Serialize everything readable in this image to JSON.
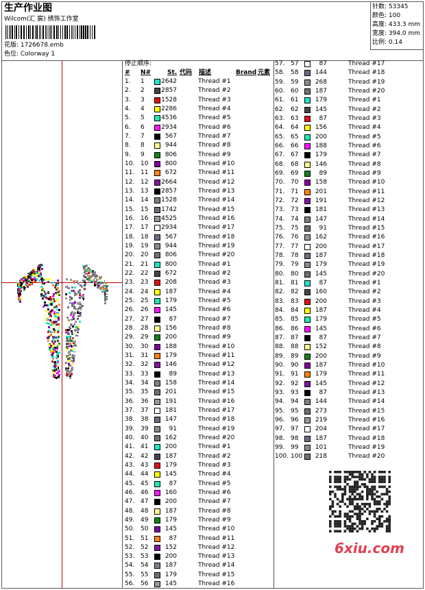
{
  "header": {
    "title": "生产作业图",
    "subtitle": "Wilcom(汇 宸) 绣饰工作室",
    "design": "花版: 1726678.emb",
    "colorway": "色位: Colorway 1"
  },
  "info": [
    "针数: 53345",
    "颜色: 100",
    "高度: 433.3 mm",
    "宽度: 394.0 mm",
    "比例: 0.14"
  ],
  "table": {
    "caption": "停止顺序:",
    "columns": [
      "#",
      "N#",
      "St.",
      "代码",
      "描述",
      "Brand",
      "元素"
    ],
    "rows": [
      [
        "1.",
        "1",
        "#1ee6c4",
        "2642",
        "Thread #1"
      ],
      [
        "2.",
        "2",
        "#45454d",
        "2857",
        "Thread #2"
      ],
      [
        "3.",
        "3",
        "#e01414",
        "1528",
        "Thread #3"
      ],
      [
        "4.",
        "4",
        "#ffff00",
        "2286",
        "Thread #4"
      ],
      [
        "5.",
        "5",
        "#22e8b0",
        "4536",
        "Thread #5"
      ],
      [
        "6.",
        "6",
        "#ff14ff",
        "2934",
        "Thread #6"
      ],
      [
        "7.",
        "7",
        "#000000",
        "567",
        "Thread #7"
      ],
      [
        "8.",
        "8",
        "#ffff90",
        "944",
        "Thread #8"
      ],
      [
        "9.",
        "9",
        "#148214",
        "806",
        "Thread #9"
      ],
      [
        "10.",
        "10",
        "#8200a0",
        "800",
        "Thread #10"
      ],
      [
        "11.",
        "11",
        "#ff8214",
        "672",
        "Thread #11"
      ],
      [
        "12.",
        "12",
        "#8214a0",
        "2664",
        "Thread #12"
      ],
      [
        "13.",
        "13",
        "#000000",
        "2857",
        "Thread #13"
      ],
      [
        "14.",
        "14",
        "#80808a",
        "1528",
        "Thread #14"
      ],
      [
        "15.",
        "15",
        "#6e6e78",
        "1742",
        "Thread #15"
      ],
      [
        "16.",
        "16",
        "#96969e",
        "4525",
        "Thread #16"
      ],
      [
        "17.",
        "17",
        "#ffffff",
        "2934",
        "Thread #17"
      ],
      [
        "18.",
        "18",
        "#6e6e82",
        "567",
        "Thread #18"
      ],
      [
        "19.",
        "19",
        "#8a8a92",
        "944",
        "Thread #19"
      ],
      [
        "20.",
        "20",
        "#707078",
        "806",
        "Thread #20"
      ],
      [
        "21.",
        "21",
        "#1ee6c4",
        "800",
        "Thread #1"
      ],
      [
        "22.",
        "22",
        "#45454d",
        "672",
        "Thread #2"
      ],
      [
        "23.",
        "23",
        "#e01414",
        "208",
        "Thread #3"
      ],
      [
        "24.",
        "24",
        "#ffff00",
        "187",
        "Thread #4"
      ],
      [
        "25.",
        "25",
        "#22e8b0",
        "179",
        "Thread #5"
      ],
      [
        "26.",
        "26",
        "#ff14ff",
        "145",
        "Thread #6"
      ],
      [
        "27.",
        "27",
        "#000000",
        "87",
        "Thread #7"
      ],
      [
        "28.",
        "28",
        "#ffff90",
        "156",
        "Thread #8"
      ],
      [
        "29.",
        "29",
        "#148214",
        "200",
        "Thread #9"
      ],
      [
        "30.",
        "30",
        "#8200a0",
        "188",
        "Thread #10"
      ],
      [
        "31.",
        "31",
        "#ff8214",
        "179",
        "Thread #11"
      ],
      [
        "32.",
        "32",
        "#8214a0",
        "146",
        "Thread #12"
      ],
      [
        "33.",
        "33",
        "#000000",
        "89",
        "Thread #13"
      ],
      [
        "34.",
        "34",
        "#80808a",
        "158",
        "Thread #14"
      ],
      [
        "35.",
        "35",
        "#6e6e78",
        "201",
        "Thread #15"
      ],
      [
        "36.",
        "36",
        "#96969e",
        "191",
        "Thread #16"
      ],
      [
        "37.",
        "37",
        "#ffffff",
        "181",
        "Thread #17"
      ],
      [
        "38.",
        "38",
        "#6e6e82",
        "147",
        "Thread #18"
      ],
      [
        "39.",
        "39",
        "#8a8a92",
        "91",
        "Thread #19"
      ],
      [
        "40.",
        "40",
        "#707078",
        "162",
        "Thread #20"
      ],
      [
        "41.",
        "41",
        "#1ee6c4",
        "200",
        "Thread #1"
      ],
      [
        "42.",
        "42",
        "#45454d",
        "187",
        "Thread #2"
      ],
      [
        "43.",
        "43",
        "#e01414",
        "179",
        "Thread #3"
      ],
      [
        "44.",
        "44",
        "#ffff00",
        "145",
        "Thread #4"
      ],
      [
        "45.",
        "45",
        "#22e8b0",
        "87",
        "Thread #5"
      ],
      [
        "46.",
        "46",
        "#ff14ff",
        "160",
        "Thread #6"
      ],
      [
        "47.",
        "47",
        "#000000",
        "200",
        "Thread #7"
      ],
      [
        "48.",
        "48",
        "#ffff90",
        "187",
        "Thread #8"
      ],
      [
        "49.",
        "49",
        "#148214",
        "179",
        "Thread #9"
      ],
      [
        "50.",
        "50",
        "#8200a0",
        "145",
        "Thread #10"
      ],
      [
        "51.",
        "51",
        "#ff8214",
        "87",
        "Thread #11"
      ],
      [
        "52.",
        "52",
        "#8214a0",
        "152",
        "Thread #12"
      ],
      [
        "53.",
        "53",
        "#000000",
        "200",
        "Thread #13"
      ],
      [
        "54.",
        "54",
        "#80808a",
        "187",
        "Thread #14"
      ],
      [
        "55.",
        "55",
        "#6e6e78",
        "179",
        "Thread #15"
      ],
      [
        "56.",
        "56",
        "#96969e",
        "145",
        "Thread #16"
      ],
      [
        "57.",
        "57",
        "#ffffff",
        "87",
        "Thread #17"
      ],
      [
        "58.",
        "58",
        "#6e6e82",
        "144",
        "Thread #18"
      ],
      [
        "59.",
        "59",
        "#8a8a92",
        "268",
        "Thread #19"
      ],
      [
        "60.",
        "60",
        "#707078",
        "187",
        "Thread #20"
      ],
      [
        "61.",
        "61",
        "#1ee6c4",
        "179",
        "Thread #1"
      ],
      [
        "62.",
        "62",
        "#45454d",
        "145",
        "Thread #2"
      ],
      [
        "63.",
        "63",
        "#e01414",
        "87",
        "Thread #3"
      ],
      [
        "64.",
        "64",
        "#ffff00",
        "156",
        "Thread #4"
      ],
      [
        "65.",
        "65",
        "#22e8b0",
        "200",
        "Thread #5"
      ],
      [
        "66.",
        "66",
        "#ff14ff",
        "188",
        "Thread #6"
      ],
      [
        "67.",
        "67",
        "#000000",
        "179",
        "Thread #7"
      ],
      [
        "68.",
        "68",
        "#ffff90",
        "146",
        "Thread #8"
      ],
      [
        "69.",
        "69",
        "#148214",
        "89",
        "Thread #9"
      ],
      [
        "70.",
        "70",
        "#8200a0",
        "158",
        "Thread #10"
      ],
      [
        "71.",
        "71",
        "#ff8214",
        "201",
        "Thread #11"
      ],
      [
        "72.",
        "72",
        "#8214a0",
        "191",
        "Thread #12"
      ],
      [
        "73.",
        "73",
        "#000000",
        "181",
        "Thread #13"
      ],
      [
        "74.",
        "74",
        "#80808a",
        "147",
        "Thread #14"
      ],
      [
        "75.",
        "75",
        "#6e6e78",
        "91",
        "Thread #15"
      ],
      [
        "76.",
        "76",
        "#96969e",
        "162",
        "Thread #16"
      ],
      [
        "77.",
        "77",
        "#ffffff",
        "200",
        "Thread #17"
      ],
      [
        "78.",
        "78",
        "#6e6e82",
        "187",
        "Thread #18"
      ],
      [
        "79.",
        "79",
        "#8a8a92",
        "179",
        "Thread #19"
      ],
      [
        "80.",
        "80",
        "#707078",
        "145",
        "Thread #20"
      ],
      [
        "81.",
        "81",
        "#1ee6c4",
        "87",
        "Thread #1"
      ],
      [
        "82.",
        "82",
        "#45454d",
        "160",
        "Thread #2"
      ],
      [
        "83.",
        "83",
        "#e01414",
        "200",
        "Thread #3"
      ],
      [
        "84.",
        "84",
        "#ffff00",
        "187",
        "Thread #4"
      ],
      [
        "85.",
        "85",
        "#22e8b0",
        "179",
        "Thread #5"
      ],
      [
        "86.",
        "86",
        "#ff14ff",
        "145",
        "Thread #6"
      ],
      [
        "87.",
        "87",
        "#000000",
        "87",
        "Thread #7"
      ],
      [
        "88.",
        "88",
        "#ffff90",
        "152",
        "Thread #8"
      ],
      [
        "89.",
        "89",
        "#148214",
        "200",
        "Thread #9"
      ],
      [
        "90.",
        "90",
        "#8200a0",
        "187",
        "Thread #10"
      ],
      [
        "91.",
        "91",
        "#ff8214",
        "179",
        "Thread #11"
      ],
      [
        "92.",
        "92",
        "#8214a0",
        "145",
        "Thread #12"
      ],
      [
        "93.",
        "93",
        "#000000",
        "87",
        "Thread #13"
      ],
      [
        "94.",
        "94",
        "#80808a",
        "144",
        "Thread #14"
      ],
      [
        "95.",
        "95",
        "#6e6e78",
        "273",
        "Thread #15"
      ],
      [
        "96.",
        "96",
        "#96969e",
        "219",
        "Thread #16"
      ],
      [
        "97.",
        "97",
        "#ffffff",
        "204",
        "Thread #17"
      ],
      [
        "98.",
        "98",
        "#6e6e82",
        "187",
        "Thread #18"
      ],
      [
        "99.",
        "99",
        "#8a8a92",
        "101",
        "Thread #19"
      ],
      [
        "100.",
        "100",
        "#707078",
        "218",
        "Thread #20"
      ]
    ]
  },
  "watermark": "6xiu.com"
}
